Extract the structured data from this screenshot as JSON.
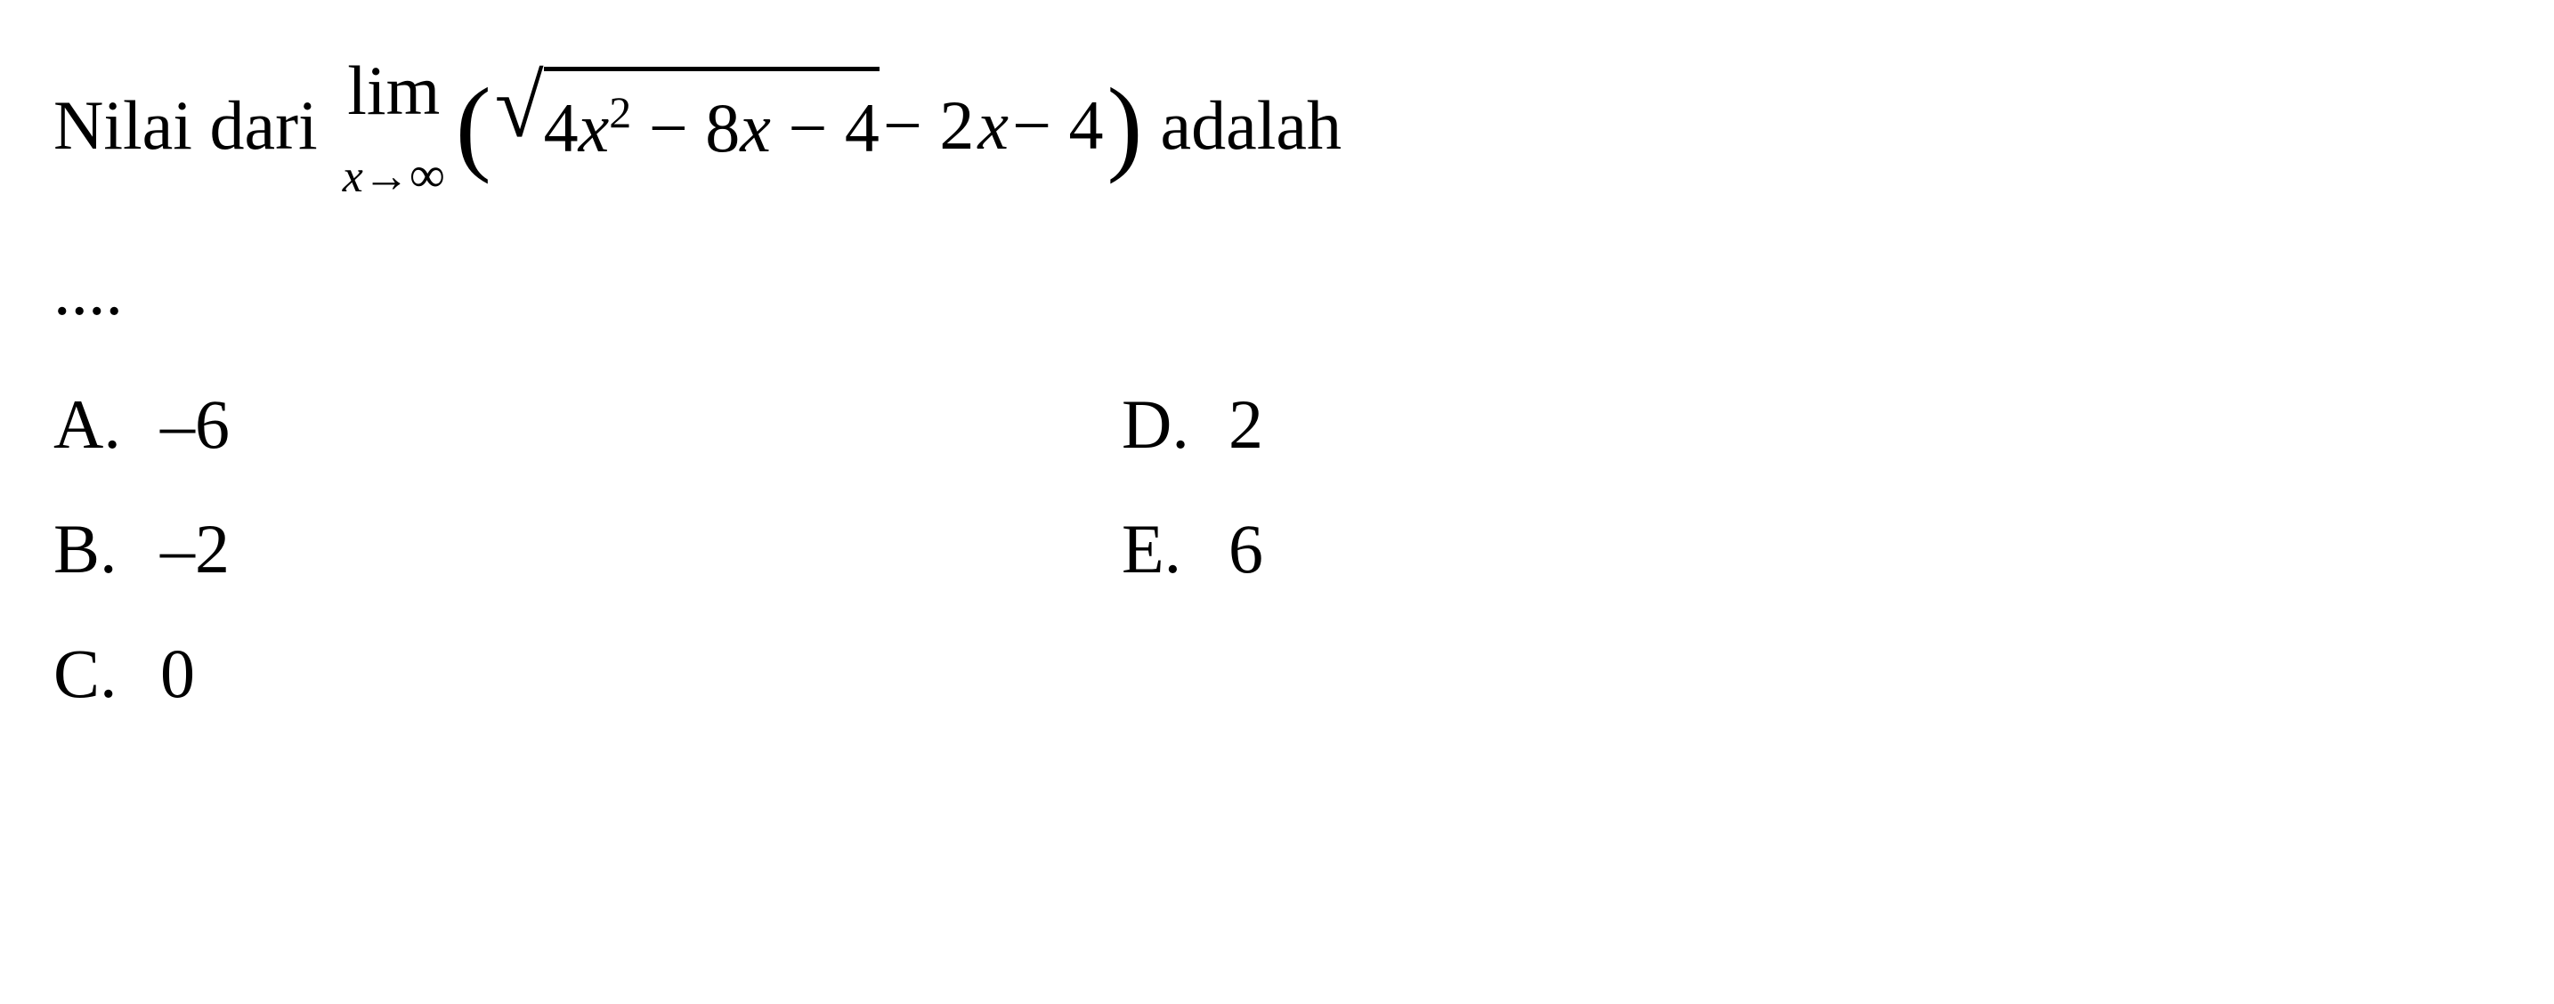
{
  "question": {
    "prefix": "Nilai dari",
    "limit_label": "lim",
    "limit_var": "x",
    "limit_arrow": "→",
    "limit_to": "∞",
    "sqrt_expr_part1": "4",
    "sqrt_expr_var1": "x",
    "sqrt_expr_exp": "2",
    "sqrt_expr_part2": " − 8",
    "sqrt_expr_var2": "x",
    "sqrt_expr_part3": " − 4",
    "after_sqrt_part1": " − 2",
    "after_sqrt_var": "x",
    "after_sqrt_part2": " − 4",
    "suffix": "adalah",
    "continuation": "...."
  },
  "options": {
    "a": {
      "label": "A.",
      "value": "–6"
    },
    "b": {
      "label": "B.",
      "value": "–2"
    },
    "c": {
      "label": "C.",
      "value": "0"
    },
    "d": {
      "label": "D.",
      "value": "2"
    },
    "e": {
      "label": "E.",
      "value": "6"
    }
  },
  "style": {
    "text_color": "#000000",
    "background_color": "#ffffff",
    "base_fontsize": 78,
    "sub_fontsize": 52,
    "super_fontsize": 50,
    "font_family": "Times New Roman"
  }
}
